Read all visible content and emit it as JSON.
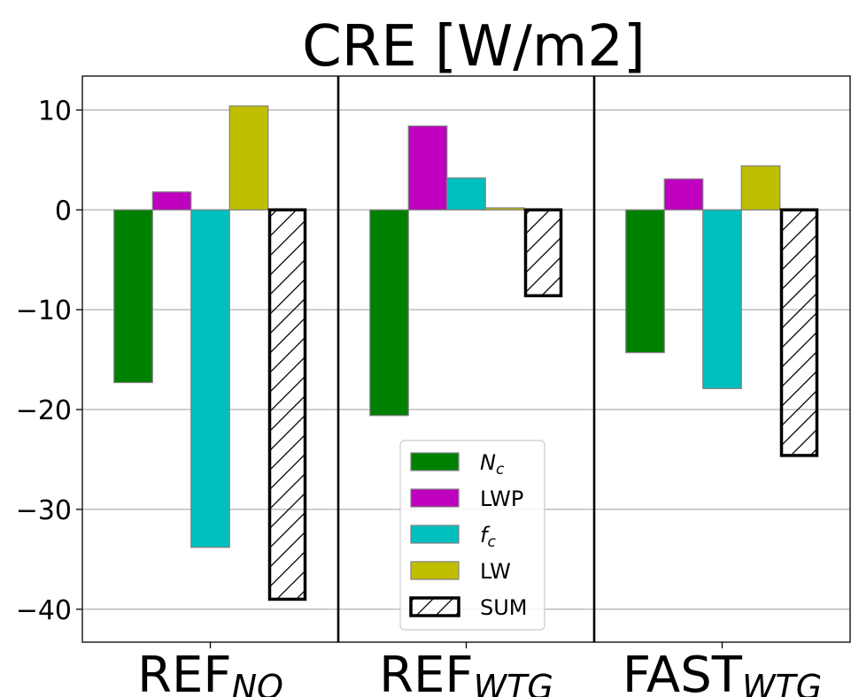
{
  "chart_data": {
    "type": "bar",
    "title": "CRE [W/m2]",
    "categories": [
      {
        "main": "REF",
        "sub": "NO"
      },
      {
        "main": "REF",
        "sub": "WTG"
      },
      {
        "main": "FAST",
        "sub": "WTG"
      }
    ],
    "series": [
      {
        "name": "N",
        "name_sub": "c",
        "color": "#008000",
        "values": [
          -17.3,
          -20.6,
          -14.3
        ]
      },
      {
        "name": "LWP",
        "name_sub": "",
        "color": "#bf00bf",
        "values": [
          1.8,
          8.4,
          3.1
        ]
      },
      {
        "name": "f",
        "name_sub": "c",
        "color": "#00bfbf",
        "values": [
          -33.8,
          3.2,
          -17.9
        ]
      },
      {
        "name": "LW",
        "name_sub": "",
        "color": "#bfbf00",
        "values": [
          10.4,
          0.2,
          4.4
        ]
      },
      {
        "name": "SUM",
        "name_sub": "",
        "color": "none",
        "hatch": true,
        "values": [
          -39.0,
          -8.6,
          -24.6
        ]
      }
    ],
    "yticks": [
      "10",
      "0",
      "−10",
      "−20",
      "−30",
      "−40"
    ],
    "ytick_values": [
      10,
      0,
      -10,
      -20,
      -30,
      -40
    ],
    "ylim": [
      -43.3,
      13.4
    ],
    "grid": "y",
    "legend_position": "lower-center"
  }
}
